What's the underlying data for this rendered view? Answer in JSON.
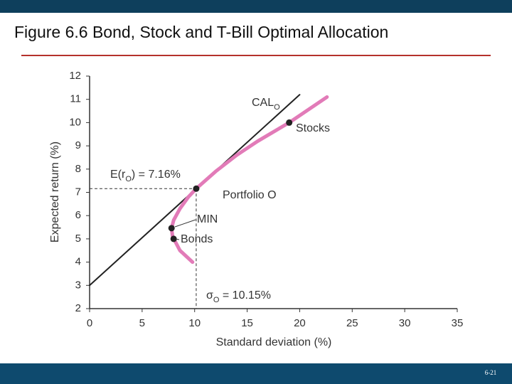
{
  "header": {
    "title": "Figure 6.6 Bond, Stock and T-Bill Optimal Allocation",
    "page": "6-21"
  },
  "chart_data": {
    "type": "line",
    "xlabel": "Standard deviation (%)",
    "ylabel": "Expected return (%)",
    "xlim": [
      0,
      35
    ],
    "ylim": [
      2,
      12
    ],
    "xticks": [
      0,
      5,
      10,
      15,
      20,
      25,
      30,
      35
    ],
    "yticks": [
      2,
      3,
      4,
      5,
      6,
      7,
      8,
      9,
      10,
      11,
      12
    ],
    "lines": [
      {
        "color": "#222222",
        "x": [
          0,
          20
        ],
        "y": [
          3,
          11.2
        ]
      },
      {
        "color": "#e27bb8",
        "x": [
          9.8,
          8.6,
          7.9,
          7.8,
          8.0,
          8.6,
          9.4,
          10.15,
          12,
          14,
          16,
          19,
          22.6
        ],
        "y": [
          4,
          4.5,
          5.1,
          5.46,
          5.8,
          6.3,
          6.8,
          7.16,
          7.9,
          8.6,
          9.2,
          10,
          11.1
        ]
      }
    ],
    "points": {
      "color": "#222222",
      "x": [
        19,
        10.15,
        7.8,
        8
      ],
      "y": [
        10,
        7.16,
        5.46,
        5
      ]
    },
    "annotations": [
      {
        "parts": [
          "CAL",
          "O"
        ]
      },
      {
        "parts": [
          "Stocks"
        ]
      },
      {
        "parts": [
          "E(r",
          "O",
          ") = 7.16%"
        ]
      },
      {
        "parts": [
          "Portfolio O"
        ]
      },
      {
        "parts": [
          "MIN"
        ]
      },
      {
        "parts": [
          "Bonds"
        ]
      },
      {
        "parts": [
          "σ",
          "O",
          " = 10.15%"
        ]
      }
    ]
  }
}
